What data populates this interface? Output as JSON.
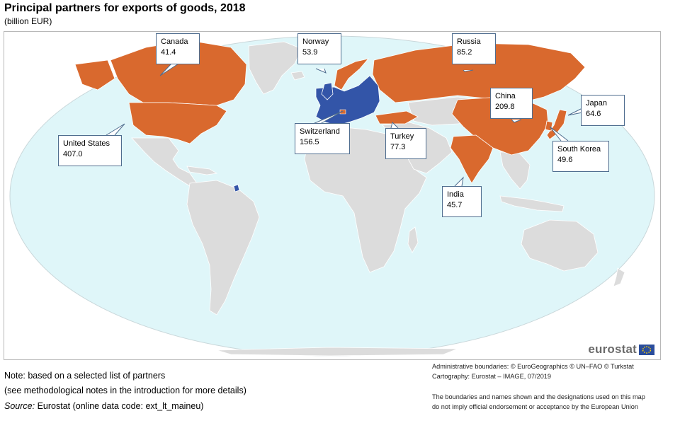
{
  "header": {
    "title": "Principal partners for exports of goods, 2018",
    "subtitle": "(billion EUR)"
  },
  "map_data": {
    "type": "choropleth-world",
    "unit": "billion EUR",
    "colors": {
      "ocean": "#dff6f9",
      "land": "#dcdcdc",
      "border": "#ffffff",
      "partner": "#d9692e",
      "eu": "#3355a8",
      "callout_border": "#4f6d8f"
    },
    "partners": [
      {
        "name": "Canada",
        "value": "41.4"
      },
      {
        "name": "Norway",
        "value": "53.9"
      },
      {
        "name": "Russia",
        "value": "85.2"
      },
      {
        "name": "China",
        "value": "209.8"
      },
      {
        "name": "Japan",
        "value": "64.6"
      },
      {
        "name": "United States",
        "value": "407.0"
      },
      {
        "name": "Switzerland",
        "value": "156.5"
      },
      {
        "name": "Turkey",
        "value": "77.3"
      },
      {
        "name": "South Korea",
        "value": "49.6"
      },
      {
        "name": "India",
        "value": "45.7"
      }
    ]
  },
  "logo": {
    "text": "eurostat",
    "icon": "eu-flag-icon"
  },
  "notes": {
    "line1": "Note: based on a selected list of partners",
    "line2": "(see methodological notes in the introduction for more details)",
    "source_label": "Source:",
    "source_text": "Eurostat (online data code: ext_lt_maineu)"
  },
  "credits": {
    "line1": "Administrative boundaries: © EuroGeographics © UN–FAO © Turkstat",
    "line2": "Cartography: Eurostat – IMAGE, 07/2019",
    "line3": "The boundaries and names shown and the designations used on this map",
    "line4": "do not imply official endorsement or acceptance by the European Union"
  }
}
